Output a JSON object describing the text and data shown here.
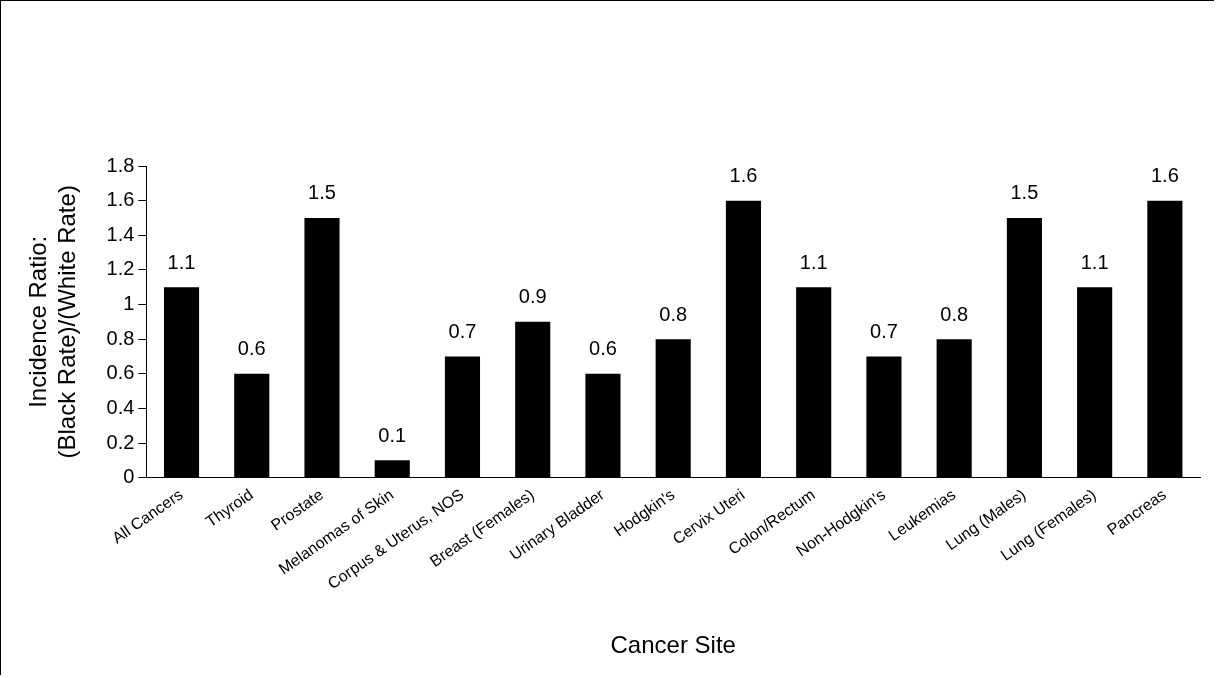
{
  "chart_data": {
    "type": "bar",
    "xlabel": "Cancer Site",
    "ylabel": "Incidence Ratio:\n(Black Rate)/(White Rate)",
    "categories": [
      "All Cancers",
      "Thyroid",
      "Prostate",
      "Melanomas of Skin",
      "Corpus & Uterus, NOS",
      "Breast (Females)",
      "Urinary Bladder",
      "Hodgkin's",
      "Cervix Uteri",
      "Colon/Rectum",
      "Non-Hodgkin's",
      "Leukemias",
      "Lung (Males)",
      "Lung (Females)",
      "Pancreas"
    ],
    "values": [
      1.1,
      0.6,
      1.5,
      0.1,
      0.7,
      0.9,
      0.6,
      0.8,
      1.6,
      1.1,
      0.7,
      0.8,
      1.5,
      1.1,
      1.6
    ],
    "color": "#000000",
    "ylim": [
      0,
      1.8
    ],
    "yticks": [
      0,
      0.2,
      0.4,
      0.6,
      0.8,
      1,
      1.2,
      1.4,
      1.6,
      1.8
    ],
    "grid": false,
    "legend": false,
    "data_labels": true
  }
}
